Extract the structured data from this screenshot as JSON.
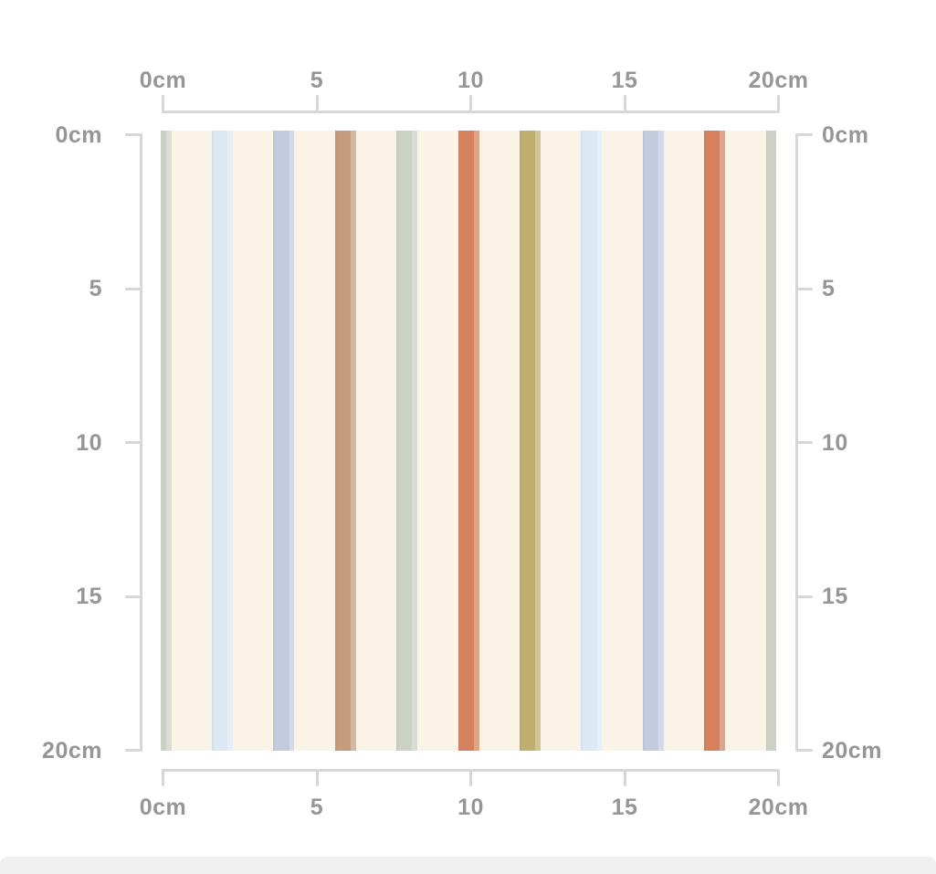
{
  "pattern": {
    "description": "striped pattern swatch preview",
    "background_color": "#faf4e7",
    "size_cm": 20,
    "stripe_width_cm": 0.7,
    "stripe_spacing_cm": 2,
    "stripes": [
      {
        "position_cm": 0,
        "color_name": "sage",
        "color": "#cbd2c5"
      },
      {
        "position_cm": 2,
        "color_name": "light-blue",
        "color": "#dde8f5"
      },
      {
        "position_cm": 4,
        "color_name": "periwinkle",
        "color": "#c3cbdf"
      },
      {
        "position_cm": 6,
        "color_name": "tan",
        "color": "#c49c7b"
      },
      {
        "position_cm": 8,
        "color_name": "sage",
        "color": "#cbd2c5"
      },
      {
        "position_cm": 10,
        "color_name": "terracotta",
        "color": "#d5815e"
      },
      {
        "position_cm": 12,
        "color_name": "olive-gold",
        "color": "#c0ae6e"
      },
      {
        "position_cm": 14,
        "color_name": "light-blue",
        "color": "#dde8f5"
      },
      {
        "position_cm": 16,
        "color_name": "periwinkle",
        "color": "#c3cbdf"
      },
      {
        "position_cm": 18,
        "color_name": "terracotta",
        "color": "#d5815e"
      },
      {
        "position_cm": 20,
        "color_name": "sage",
        "color": "#cbd2c5"
      }
    ]
  },
  "rulers": {
    "unit": "cm",
    "tick_positions_cm": [
      0,
      5,
      10,
      15,
      20
    ],
    "labels": [
      "0cm",
      "5",
      "10",
      "15",
      "20cm"
    ],
    "sides": [
      "top",
      "bottom",
      "left",
      "right"
    ],
    "line_color": "#d7d7d7",
    "label_color": "#969696"
  },
  "footer_band": {
    "color": "#f0f0f0"
  }
}
